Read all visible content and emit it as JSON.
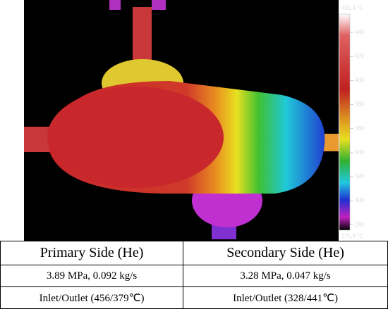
{
  "image": {
    "colorbar": {
      "top_label": "455.4 °C",
      "bottom_label": "275.4 °C",
      "range": [
        275.4,
        455.4
      ],
      "ticks": [
        440,
        420,
        400,
        380,
        360,
        340,
        320,
        300,
        280
      ]
    }
  },
  "table": {
    "header": [
      "Primary Side (He)",
      "Secondary Side (He)"
    ],
    "rows": [
      [
        "3.89 MPa, 0.092 kg/s",
        "3.28 MPa, 0.047 kg/s"
      ],
      [
        "Inlet/Outlet (456/379℃)",
        "Inlet/Outlet (328/441℃)"
      ]
    ]
  }
}
